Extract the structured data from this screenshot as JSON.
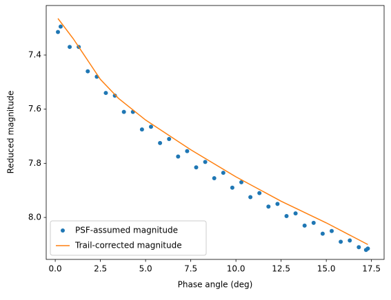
{
  "chart_data": {
    "type": "line",
    "xlabel": "Phase angle (deg)",
    "ylabel": "Reduced magnitude",
    "xlim": [
      -0.5,
      18.2
    ],
    "ylim": [
      8.155,
      7.217
    ],
    "xticks": [
      {
        "value": 0,
        "label": "0.0"
      },
      2.5,
      {
        "value": 5,
        "label": "5.0"
      },
      7.5,
      {
        "value": 10,
        "label": "10.0"
      },
      12.5,
      {
        "value": 15,
        "label": "15.0"
      },
      17.5
    ],
    "yticks": [
      7.4,
      7.6,
      7.8,
      {
        "value": 8,
        "label": "8.0"
      }
    ],
    "legend": "lower left",
    "series": [
      {
        "name": "PSF-assumed magnitude",
        "color": "#1f77b4",
        "style": "dots",
        "x": [
          0.3,
          1.3,
          2.3,
          3.3,
          4.3,
          5.3,
          6.3,
          7.3,
          8.3,
          9.3,
          10.3,
          11.3,
          12.3,
          13.3,
          14.3,
          15.3,
          16.3,
          17.3,
          0.15,
          0.8,
          1.8,
          2.8,
          3.8,
          4.8,
          5.8,
          6.8,
          7.8,
          8.8,
          9.8,
          10.8,
          11.8,
          12.8,
          13.8,
          14.8,
          15.8,
          16.8,
          17.2
        ],
        "values": [
          7.295,
          7.37,
          7.48,
          7.55,
          7.61,
          7.665,
          7.71,
          7.755,
          7.795,
          7.835,
          7.87,
          7.91,
          7.95,
          7.985,
          8.02,
          8.05,
          8.085,
          8.115,
          7.315,
          7.37,
          7.46,
          7.54,
          7.61,
          7.675,
          7.725,
          7.775,
          7.815,
          7.855,
          7.89,
          7.925,
          7.96,
          7.995,
          8.03,
          8.06,
          8.09,
          8.11,
          8.12
        ]
      },
      {
        "name": "Trail-corrected magnitude",
        "color": "#ff7f0e",
        "style": "line",
        "x": [
          0.15,
          1,
          1.5,
          2.5,
          3.5,
          5,
          7.5,
          10,
          12.5,
          15,
          17.3
        ],
        "values": [
          7.265,
          7.34,
          7.39,
          7.49,
          7.56,
          7.64,
          7.75,
          7.85,
          7.94,
          8.02,
          8.1
        ]
      }
    ]
  }
}
